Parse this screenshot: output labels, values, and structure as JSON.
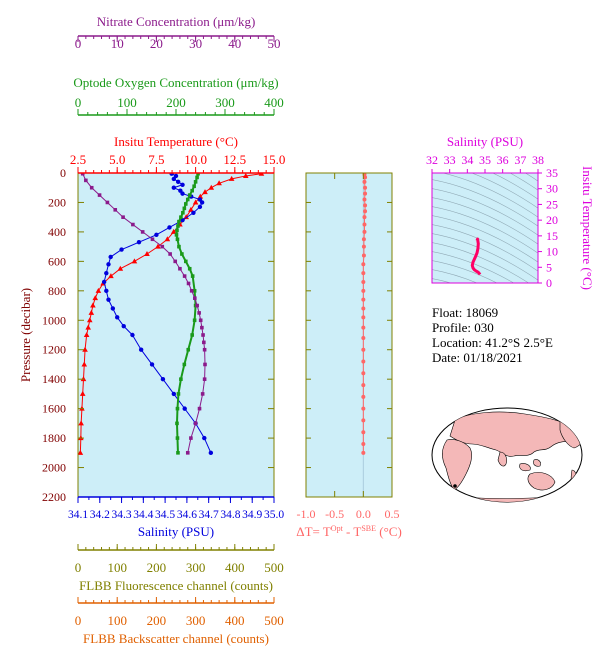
{
  "colors": {
    "nitrate": "#8b1a8b",
    "oxygen": "#1a9a1a",
    "temperature": "#ff0000",
    "salinity": "#0000dd",
    "difference": "#ff6666",
    "fluorescence": "#808000",
    "backscatter": "#e06000",
    "ts_axis": "#dd00dd",
    "panel_bg": "#cdeef8",
    "frame": "#808000",
    "ts_trace": "#ff0066"
  },
  "float_info": {
    "float": "Float:  18069",
    "profile": "Profile:  030",
    "location": "Location:  41.2°S   2.5°E",
    "date": "Date:  01/18/2021"
  },
  "map": {
    "name": "world-map"
  },
  "chart_data": [
    {
      "id": "profile",
      "type": "line",
      "y_label": "Pressure (decibar)",
      "y_range": [
        0,
        2200
      ],
      "y_ticks": [
        "0",
        "200",
        "400",
        "600",
        "800",
        "1000",
        "1200",
        "1400",
        "1600",
        "1800",
        "2000",
        "2200"
      ],
      "grid": false,
      "axes": {
        "nitrate": {
          "label": "Nitrate Concentration (μm/kg)",
          "range": [
            0,
            50
          ],
          "ticks": [
            "0",
            "10",
            "20",
            "30",
            "40",
            "50"
          ]
        },
        "oxygen": {
          "label": "Optode Oxygen Concentration (μm/kg)",
          "range": [
            0,
            400
          ],
          "ticks": [
            "0",
            "100",
            "200",
            "300",
            "400"
          ]
        },
        "temperature": {
          "label": "Insitu Temperature (°C)",
          "range": [
            2.5,
            15.0
          ],
          "ticks": [
            "2.5",
            "5.0",
            "7.5",
            "10.0",
            "12.5",
            "15.0"
          ]
        },
        "salinity": {
          "label": "Salinity (PSU)",
          "range": [
            34.1,
            35.0
          ],
          "ticks": [
            "34.1",
            "34.2",
            "34.3",
            "34.4",
            "34.5",
            "34.6",
            "34.7",
            "34.8",
            "34.9",
            "35.0"
          ]
        },
        "fluorescence": {
          "label": "FLBB Fluorescence channel (counts)",
          "range": [
            0,
            500
          ],
          "ticks": [
            "0",
            "100",
            "200",
            "300",
            "400",
            "500"
          ]
        },
        "backscatter": {
          "label": "FLBB Backscatter channel (counts)",
          "range": [
            0,
            500
          ],
          "ticks": [
            "0",
            "100",
            "200",
            "300",
            "400",
            "500"
          ]
        }
      },
      "series": [
        {
          "name": "Insitu Temperature",
          "axis": "temperature",
          "marker": "triangle",
          "points": [
            [
              14.2,
              5
            ],
            [
              13.2,
              20
            ],
            [
              12.3,
              40
            ],
            [
              11.5,
              70
            ],
            [
              11.0,
              100
            ],
            [
              10.6,
              130
            ],
            [
              10.3,
              160
            ],
            [
              10.0,
              200
            ],
            [
              9.7,
              250
            ],
            [
              9.4,
              300
            ],
            [
              9.0,
              350
            ],
            [
              8.6,
              400
            ],
            [
              8.2,
              450
            ],
            [
              7.6,
              500
            ],
            [
              6.9,
              550
            ],
            [
              6.1,
              600
            ],
            [
              5.2,
              650
            ],
            [
              4.6,
              700
            ],
            [
              4.1,
              750
            ],
            [
              3.8,
              800
            ],
            [
              3.6,
              850
            ],
            [
              3.45,
              900
            ],
            [
              3.35,
              950
            ],
            [
              3.25,
              1000
            ],
            [
              3.15,
              1050
            ],
            [
              3.05,
              1100
            ],
            [
              2.95,
              1200
            ],
            [
              2.9,
              1300
            ],
            [
              2.85,
              1400
            ],
            [
              2.8,
              1500
            ],
            [
              2.75,
              1600
            ],
            [
              2.7,
              1700
            ],
            [
              2.68,
              1800
            ],
            [
              2.65,
              1900
            ]
          ]
        },
        {
          "name": "Salinity",
          "axis": "salinity",
          "marker": "circle",
          "points": [
            [
              34.53,
              5
            ],
            [
              34.55,
              20
            ],
            [
              34.54,
              40
            ],
            [
              34.56,
              60
            ],
            [
              34.58,
              80
            ],
            [
              34.54,
              100
            ],
            [
              34.57,
              120
            ],
            [
              34.58,
              140
            ],
            [
              34.62,
              160
            ],
            [
              34.66,
              180
            ],
            [
              34.67,
              200
            ],
            [
              34.66,
              230
            ],
            [
              34.63,
              270
            ],
            [
              34.58,
              320
            ],
            [
              34.52,
              370
            ],
            [
              34.46,
              420
            ],
            [
              34.38,
              470
            ],
            [
              34.3,
              520
            ],
            [
              34.25,
              570
            ],
            [
              34.24,
              620
            ],
            [
              34.23,
              680
            ],
            [
              34.22,
              740
            ],
            [
              34.23,
              800
            ],
            [
              34.24,
              860
            ],
            [
              34.26,
              920
            ],
            [
              34.28,
              980
            ],
            [
              34.31,
              1040
            ],
            [
              34.35,
              1100
            ],
            [
              34.39,
              1200
            ],
            [
              34.44,
              1300
            ],
            [
              34.49,
              1400
            ],
            [
              34.54,
              1500
            ],
            [
              34.59,
              1600
            ],
            [
              34.64,
              1700
            ],
            [
              34.68,
              1800
            ],
            [
              34.71,
              1900
            ]
          ]
        },
        {
          "name": "Optode Oxygen",
          "axis": "oxygen",
          "marker": "square",
          "points": [
            [
              245,
              5
            ],
            [
              243,
              30
            ],
            [
              240,
              60
            ],
            [
              237,
              90
            ],
            [
              233,
              120
            ],
            [
              228,
              150
            ],
            [
              224,
              180
            ],
            [
              220,
              210
            ],
            [
              217,
              240
            ],
            [
              214,
              270
            ],
            [
              210,
              300
            ],
            [
              206,
              330
            ],
            [
              204,
              360
            ],
            [
              202,
              390
            ],
            [
              201,
              420
            ],
            [
              203,
              450
            ],
            [
              206,
              500
            ],
            [
              212,
              550
            ],
            [
              220,
              600
            ],
            [
              228,
              650
            ],
            [
              234,
              700
            ],
            [
              238,
              800
            ],
            [
              240,
              900
            ],
            [
              238,
              1000
            ],
            [
              233,
              1100
            ],
            [
              225,
              1200
            ],
            [
              217,
              1300
            ],
            [
              210,
              1400
            ],
            [
              205,
              1500
            ],
            [
              203,
              1600
            ],
            [
              202,
              1700
            ],
            [
              203,
              1800
            ],
            [
              204,
              1900
            ]
          ]
        },
        {
          "name": "Nitrate",
          "axis": "nitrate",
          "marker": "square",
          "points": [
            [
              1.2,
              5
            ],
            [
              2.0,
              50
            ],
            [
              3.5,
              100
            ],
            [
              5.5,
              150
            ],
            [
              7.5,
              200
            ],
            [
              9.5,
              250
            ],
            [
              11.5,
              300
            ],
            [
              14.0,
              350
            ],
            [
              16.5,
              400
            ],
            [
              19.0,
              450
            ],
            [
              21.5,
              500
            ],
            [
              23.5,
              550
            ],
            [
              24.8,
              600
            ],
            [
              26.0,
              650
            ],
            [
              27.2,
              700
            ],
            [
              28.2,
              750
            ],
            [
              29.0,
              800
            ],
            [
              29.8,
              850
            ],
            [
              30.4,
              900
            ],
            [
              30.9,
              950
            ],
            [
              31.3,
              1000
            ],
            [
              31.6,
              1050
            ],
            [
              31.9,
              1100
            ],
            [
              32.1,
              1150
            ],
            [
              32.3,
              1200
            ],
            [
              32.4,
              1300
            ],
            [
              32.3,
              1400
            ],
            [
              31.8,
              1500
            ],
            [
              31.0,
              1600
            ],
            [
              30.0,
              1700
            ],
            [
              28.8,
              1800
            ],
            [
              28.0,
              1900
            ]
          ]
        }
      ]
    },
    {
      "id": "difference",
      "type": "scatter",
      "x_label": "ΔT= T",
      "x_sup1": "Opt",
      "x_mid": " - T",
      "x_sup2": "SBE",
      "x_unit": " (°C)",
      "x_range": [
        -1.0,
        0.5
      ],
      "x_ticks": [
        "-1.0",
        "-0.5",
        "0.0",
        "0.5"
      ],
      "y_range": [
        0,
        2200
      ],
      "points": [
        [
          0.02,
          10
        ],
        [
          0.03,
          30
        ],
        [
          0.02,
          60
        ],
        [
          0.03,
          100
        ],
        [
          0.03,
          140
        ],
        [
          0.02,
          180
        ],
        [
          0.03,
          220
        ],
        [
          0.03,
          260
        ],
        [
          0.02,
          300
        ],
        [
          0.02,
          350
        ],
        [
          0.02,
          400
        ],
        [
          0.01,
          450
        ],
        [
          0.01,
          500
        ],
        [
          0.01,
          560
        ],
        [
          0.0,
          620
        ],
        [
          0.0,
          680
        ],
        [
          0.0,
          740
        ],
        [
          0.0,
          800
        ],
        [
          0.0,
          860
        ],
        [
          0.0,
          920
        ],
        [
          0.0,
          980
        ],
        [
          0.0,
          1050
        ],
        [
          0.0,
          1120
        ],
        [
          0.0,
          1200
        ],
        [
          0.0,
          1280
        ],
        [
          0.0,
          1360
        ],
        [
          0.0,
          1440
        ],
        [
          0.0,
          1520
        ],
        [
          0.0,
          1600
        ],
        [
          0.0,
          1680
        ],
        [
          0.0,
          1760
        ],
        [
          0.0,
          1840
        ],
        [
          0.0,
          1900
        ]
      ]
    },
    {
      "id": "ts",
      "type": "line",
      "x_label": "Salinity (PSU)",
      "y_label": "Insitu Temperature (°C)",
      "x_range": [
        32,
        38
      ],
      "x_ticks": [
        "32",
        "33",
        "34",
        "35",
        "36",
        "37",
        "38"
      ],
      "y_range": [
        0,
        35
      ],
      "y_ticks": [
        "0",
        "5",
        "10",
        "15",
        "20",
        "25",
        "30",
        "35"
      ],
      "points": [
        [
          34.72,
          2.7
        ],
        [
          34.68,
          3.0
        ],
        [
          34.62,
          3.4
        ],
        [
          34.5,
          3.8
        ],
        [
          34.4,
          4.2
        ],
        [
          34.32,
          4.8
        ],
        [
          34.28,
          5.6
        ],
        [
          34.32,
          6.6
        ],
        [
          34.4,
          7.6
        ],
        [
          34.48,
          8.6
        ],
        [
          34.55,
          9.6
        ],
        [
          34.6,
          11.0
        ],
        [
          34.62,
          12.5
        ],
        [
          34.58,
          14.0
        ],
        [
          34.55,
          13.5
        ]
      ]
    }
  ]
}
